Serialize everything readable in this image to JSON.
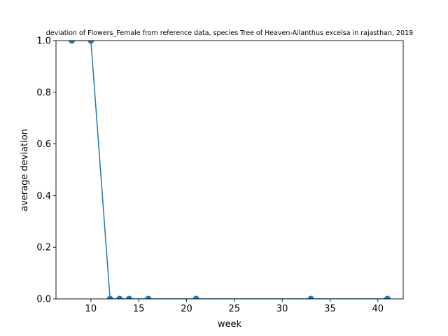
{
  "chart_data": {
    "type": "line",
    "title": "deviation of Flowers_Female from reference data, species Tree of Heaven-Ailanthus excelsa in rajasthan, 2019",
    "xlabel": "week",
    "ylabel": "average deviation",
    "xlim": [
      6.35,
      42.65
    ],
    "ylim": [
      0,
      1
    ],
    "xticks": [
      10,
      15,
      20,
      25,
      30,
      35,
      40
    ],
    "yticks": [
      0.0,
      0.2,
      0.4,
      0.6,
      0.8,
      1.0
    ],
    "xtick_labels": [
      "10",
      "15",
      "20",
      "25",
      "30",
      "35",
      "40"
    ],
    "ytick_labels": [
      "0.0",
      "0.2",
      "0.4",
      "0.6",
      "0.8",
      "1.0"
    ],
    "grid": false,
    "series": [
      {
        "color": "#1f77b4",
        "marker": "circle",
        "x": [
          8,
          10,
          12,
          13,
          14,
          16,
          21,
          33,
          41
        ],
        "y": [
          1,
          1,
          0,
          0,
          0,
          0,
          0,
          0,
          0
        ]
      }
    ]
  }
}
